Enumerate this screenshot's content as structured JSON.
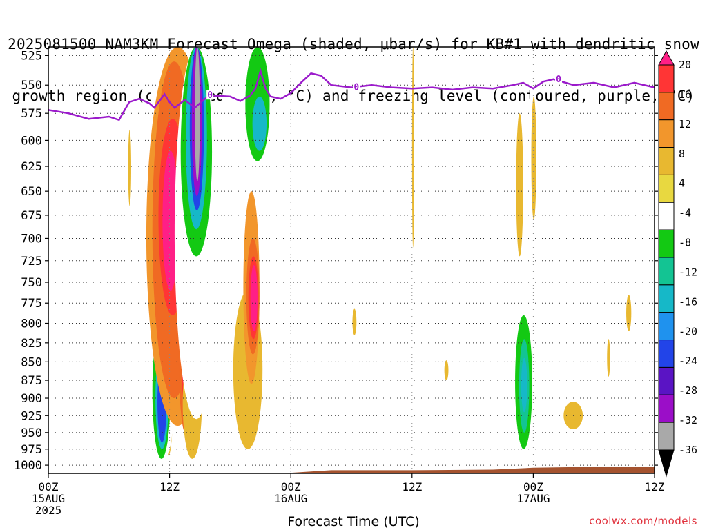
{
  "title_line1": "2025081500 NAM3KM Forecast Omega (shaded, μbar/s) for KB#1 with dendritic snow",
  "title_line2": "growth region (contoured, red, °C) and freezing level (contoured, purple, °C)",
  "credit": "coolwx.com/models",
  "chart_data": {
    "type": "heatmap",
    "title": "2025081500 NAM3KM Forecast Omega (shaded, μbar/s) for KB#1 with dendritic snow growth region (contoured, red, °C) and freezing level (contoured, purple, °C)",
    "xlabel": "Forecast Time (UTC)",
    "ylabel": "",
    "x_ticks": [
      {
        "hour": 0,
        "label": "00Z",
        "sub": [
          "15AUG",
          "2025"
        ]
      },
      {
        "hour": 12,
        "label": "12Z",
        "sub": []
      },
      {
        "hour": 24,
        "label": "00Z",
        "sub": [
          "16AUG"
        ]
      },
      {
        "hour": 36,
        "label": "12Z",
        "sub": []
      },
      {
        "hour": 48,
        "label": "00Z",
        "sub": [
          "17AUG"
        ]
      },
      {
        "hour": 60,
        "label": "12Z",
        "sub": []
      }
    ],
    "xlim": [
      0,
      60
    ],
    "y_ticks": [
      525,
      550,
      575,
      600,
      625,
      650,
      675,
      700,
      725,
      750,
      775,
      800,
      825,
      850,
      875,
      900,
      925,
      950,
      975,
      1000
    ],
    "ylim": [
      1013,
      518
    ],
    "y_scale": "log",
    "grid": true,
    "colorbar": {
      "labels": [
        "20",
        "16",
        "12",
        "8",
        "4",
        "-4",
        "-8",
        "-12",
        "-16",
        "-20",
        "-24",
        "-28",
        "-32",
        "-36"
      ],
      "colors": [
        "#ff1f86",
        "#ff3535",
        "#f06a23",
        "#f2962c",
        "#e8b830",
        "#e8d840",
        "#ffffff",
        "#13c913",
        "#13c493",
        "#16b8c8",
        "#1f92ee",
        "#2244e8",
        "#5a14c4",
        "#9b0ec8",
        "#a9a9a9",
        "#000000"
      ]
    },
    "freezing_level": {
      "label": "0",
      "color": "#9b1acb",
      "points": [
        [
          0,
          572
        ],
        [
          2,
          575
        ],
        [
          4,
          580
        ],
        [
          6,
          578
        ],
        [
          7,
          581
        ],
        [
          8,
          565
        ],
        [
          9,
          562
        ],
        [
          10,
          566
        ],
        [
          10.5,
          570
        ],
        [
          11.5,
          558
        ],
        [
          12,
          565
        ],
        [
          12.5,
          570
        ],
        [
          13.5,
          563
        ],
        [
          14.5,
          570
        ],
        [
          15.5,
          562
        ],
        [
          16,
          559
        ],
        [
          18,
          560
        ],
        [
          19,
          564
        ],
        [
          20,
          559
        ],
        [
          20.5,
          553
        ],
        [
          21,
          538
        ],
        [
          21.5,
          553
        ],
        [
          22,
          560
        ],
        [
          23,
          562
        ],
        [
          24,
          557
        ],
        [
          25,
          548
        ],
        [
          26,
          540
        ],
        [
          27,
          542
        ],
        [
          28,
          550
        ],
        [
          30,
          552
        ],
        [
          32,
          550
        ],
        [
          34,
          552
        ],
        [
          36,
          553
        ],
        [
          38,
          552
        ],
        [
          40,
          554
        ],
        [
          42,
          552
        ],
        [
          44,
          553
        ],
        [
          46,
          550
        ],
        [
          47,
          548
        ],
        [
          48,
          553
        ],
        [
          49,
          547
        ],
        [
          50,
          545
        ],
        [
          52,
          550
        ],
        [
          54,
          548
        ],
        [
          56,
          552
        ],
        [
          58,
          548
        ],
        [
          60,
          552
        ]
      ]
    },
    "omega_regions": [
      {
        "level": "4",
        "x": [
          7.9,
          8.2
        ],
        "y": [
          590,
          665
        ]
      },
      {
        "level": "4",
        "x": [
          10.3,
          11.2
        ],
        "y": [
          638,
          735
        ]
      },
      {
        "level": "-4",
        "x": [
          10.1,
          10.8
        ],
        "y": [
          530,
          625
        ]
      },
      {
        "level": "4",
        "x": [
          11.2,
          12.6
        ],
        "y": [
          600,
          985
        ]
      },
      {
        "level": "8",
        "x": [
          11.5,
          12.3
        ],
        "y": [
          720,
          960
        ]
      },
      {
        "level": "-4",
        "x": [
          9.5,
          12.6
        ],
        "y": [
          745,
          1008
        ]
      },
      {
        "level": "-8",
        "x": [
          10.3,
          12.1
        ],
        "y": [
          800,
          990
        ]
      },
      {
        "level": "-16",
        "x": [
          10.6,
          11.9
        ],
        "y": [
          830,
          975
        ]
      },
      {
        "level": "-24",
        "x": [
          10.8,
          11.7
        ],
        "y": [
          850,
          965
        ]
      },
      {
        "level": "8",
        "x": [
          9.7,
          15.9
        ],
        "y": [
          518,
          940
        ]
      },
      {
        "level": "12",
        "x": [
          10.3,
          14.6
        ],
        "y": [
          530,
          900
        ]
      },
      {
        "level": "16",
        "x": [
          10.9,
          13.7
        ],
        "y": [
          580,
          790
        ]
      },
      {
        "level": "20",
        "x": [
          11.3,
          12.9
        ],
        "y": [
          610,
          760
        ]
      },
      {
        "level": "12",
        "x": [
          12.9,
          14.2
        ],
        "y": [
          730,
          950
        ]
      },
      {
        "level": "16",
        "x": [
          13.2,
          13.9
        ],
        "y": [
          750,
          930
        ]
      },
      {
        "level": "20",
        "x": [
          13.4,
          13.8
        ],
        "y": [
          770,
          920
        ]
      },
      {
        "level": "4",
        "x": [
          13.3,
          15.2
        ],
        "y": [
          830,
          990
        ]
      },
      {
        "level": "-4",
        "x": [
          12.5,
          16.8
        ],
        "y": [
          518,
          930
        ]
      },
      {
        "level": "-8",
        "x": [
          13.1,
          16.2
        ],
        "y": [
          518,
          720
        ]
      },
      {
        "level": "-16",
        "x": [
          13.6,
          15.7
        ],
        "y": [
          518,
          690
        ]
      },
      {
        "level": "-24",
        "x": [
          14.0,
          15.4
        ],
        "y": [
          518,
          670
        ]
      },
      {
        "level": "-32",
        "x": [
          14.2,
          15.2
        ],
        "y": [
          518,
          655
        ]
      },
      {
        "level": "-36",
        "x": [
          14.5,
          15.0
        ],
        "y": [
          518,
          640
        ]
      },
      {
        "level": "-4",
        "x": [
          16.5,
          21.5
        ],
        "y": [
          518,
          860
        ]
      },
      {
        "level": "-8",
        "x": [
          19.5,
          21.9
        ],
        "y": [
          518,
          620
        ]
      },
      {
        "level": "-16",
        "x": [
          20.2,
          21.6
        ],
        "y": [
          560,
          610
        ]
      },
      {
        "level": "4",
        "x": [
          18.3,
          21.2
        ],
        "y": [
          760,
          975
        ]
      },
      {
        "level": "8",
        "x": [
          19.3,
          20.9
        ],
        "y": [
          650,
          880
        ]
      },
      {
        "level": "12",
        "x": [
          19.6,
          20.9
        ],
        "y": [
          700,
          840
        ]
      },
      {
        "level": "16",
        "x": [
          19.8,
          20.8
        ],
        "y": [
          720,
          820
        ]
      },
      {
        "level": "20",
        "x": [
          20.0,
          20.7
        ],
        "y": [
          730,
          810
        ]
      },
      {
        "level": "-4",
        "x": [
          22.8,
          23.6
        ],
        "y": [
          688,
          745
        ]
      },
      {
        "level": "-4",
        "x": [
          24.5,
          25.2
        ],
        "y": [
          655,
          770
        ]
      },
      {
        "level": "-4",
        "x": [
          24.5,
          25.0
        ],
        "y": [
          855,
          945
        ]
      },
      {
        "level": "-4",
        "x": [
          27.7,
          28.0
        ],
        "y": [
          730,
          765
        ]
      },
      {
        "level": "4",
        "x": [
          30.1,
          30.5
        ],
        "y": [
          782,
          815
        ]
      },
      {
        "level": "-4",
        "x": [
          30.5,
          31.4
        ],
        "y": [
          700,
          870
        ]
      },
      {
        "level": "4",
        "x": [
          36.0,
          36.2
        ],
        "y": [
          518,
          710
        ]
      },
      {
        "level": "-4",
        "x": [
          34.9,
          35.7
        ],
        "y": [
          835,
          955
        ]
      },
      {
        "level": "4",
        "x": [
          39.2,
          39.6
        ],
        "y": [
          848,
          875
        ]
      },
      {
        "level": "-4",
        "x": [
          37.7,
          39.4
        ],
        "y": [
          895,
          985
        ]
      },
      {
        "level": "-4",
        "x": [
          44.2,
          48.2
        ],
        "y": [
          620,
          995
        ]
      },
      {
        "level": "-8",
        "x": [
          46.2,
          47.9
        ],
        "y": [
          790,
          975
        ]
      },
      {
        "level": "-12",
        "x": [
          46.6,
          47.6
        ],
        "y": [
          820,
          950
        ]
      },
      {
        "level": "-16",
        "x": [
          46.8,
          47.4
        ],
        "y": [
          845,
          920
        ]
      },
      {
        "level": "4",
        "x": [
          46.3,
          47.0
        ],
        "y": [
          575,
          720
        ]
      },
      {
        "level": "-4",
        "x": [
          47.5,
          48.3
        ],
        "y": [
          538,
          765
        ]
      },
      {
        "level": "4",
        "x": [
          47.8,
          48.3
        ],
        "y": [
          560,
          680
        ]
      },
      {
        "level": "4",
        "x": [
          51.0,
          52.9
        ],
        "y": [
          905,
          945
        ]
      },
      {
        "level": "4",
        "x": [
          55.3,
          55.6
        ],
        "y": [
          820,
          870
        ]
      },
      {
        "level": "-4",
        "x": [
          56.2,
          56.6
        ],
        "y": [
          965,
          985
        ]
      },
      {
        "level": "4",
        "x": [
          57.2,
          57.7
        ],
        "y": [
          765,
          810
        ]
      },
      {
        "level": "-4",
        "x": [
          58.5,
          59.2
        ],
        "y": [
          700,
          775
        ]
      }
    ],
    "terrain": {
      "color": "#a5532f",
      "points": [
        [
          0,
          1012
        ],
        [
          12,
          1012
        ],
        [
          15,
          1014
        ],
        [
          24,
          1012
        ],
        [
          28,
          1008
        ],
        [
          36,
          1008
        ],
        [
          44,
          1007
        ],
        [
          48,
          1004
        ],
        [
          52,
          1003
        ],
        [
          60,
          1003
        ]
      ]
    }
  }
}
